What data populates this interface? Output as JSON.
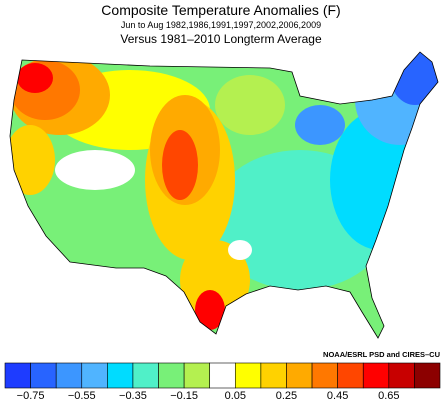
{
  "title": "Composite Temperature Anomalies (F)",
  "subtitle": "Jun to Aug  1982,1986,1991,1997,2002,2006,2009",
  "comparison": "Versus 1981–2010 Longterm Average",
  "credit": "NOAA/ESRL PSD and CIRES–CU",
  "colorbar": {
    "colors": [
      "#1e3cff",
      "#2864ff",
      "#3c96ff",
      "#50b4ff",
      "#00dcff",
      "#50f0c8",
      "#78f078",
      "#b4f050",
      "#ffffff",
      "#ffff00",
      "#ffd200",
      "#ffaa00",
      "#ff7800",
      "#ff4600",
      "#ff0000",
      "#c80000",
      "#8c0000"
    ],
    "labels": [
      "−0.75",
      "−0.55",
      "−0.35",
      "−0.15",
      "0.05",
      "0.25",
      "0.45",
      "0.65"
    ]
  }
}
